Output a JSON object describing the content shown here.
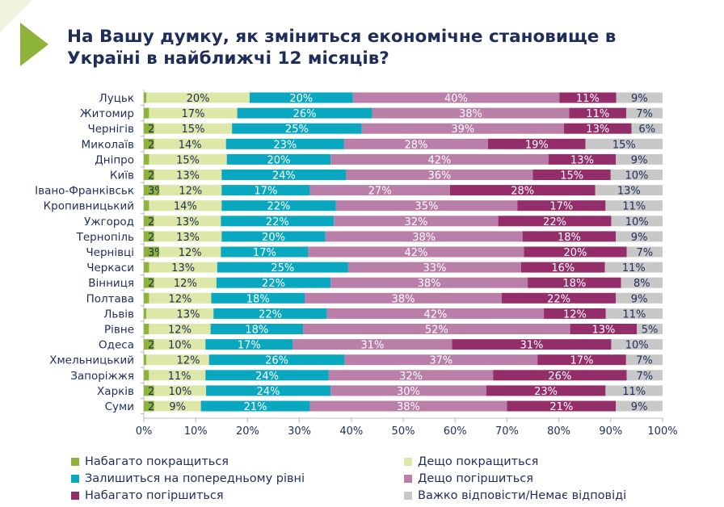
{
  "title": "На Вашу думку, як зміниться економічне становище в Україні в найближчі 12 місяців?",
  "chart_data": {
    "type": "bar",
    "stacked": true,
    "orientation": "horizontal",
    "title": "На Вашу думку, як зміниться економічне становище в Україні в найближчі 12 місяців?",
    "xlim": [
      0,
      100
    ],
    "x_ticks": [
      "0%",
      "10%",
      "20%",
      "30%",
      "40%",
      "50%",
      "60%",
      "70%",
      "80%",
      "90%",
      "100%"
    ],
    "legend_position": "bottom",
    "categories": [
      "Луцьк",
      "Житомир",
      "Чернігів",
      "Миколаїв",
      "Дніпро",
      "Київ",
      "Івано-Франківськ",
      "Кропивницький",
      "Ужгород",
      "Тернопіль",
      "Чернівці",
      "Черкаси",
      "Вінниця",
      "Полтава",
      "Львів",
      "Рівне",
      "Одеса",
      "Хмельницький",
      "Запоріжжя",
      "Харків",
      "Суми"
    ],
    "series": [
      {
        "name": "Набагато покращиться",
        "color": "#8db33a",
        "values": [
          0.5,
          1,
          2,
          2,
          1,
          2,
          3,
          1,
          2,
          2,
          3,
          1,
          2,
          1,
          0.5,
          1,
          2,
          0.5,
          1,
          2,
          2
        ],
        "labels": [
          "<1%",
          "1%",
          "2%",
          "2%",
          "1%",
          "2%",
          "3%",
          "1%",
          "2%",
          "2%",
          "3%",
          "1%",
          "2%",
          "1%",
          "<1%",
          "1%",
          "2%",
          "<1%",
          "1%",
          "2%",
          "2%"
        ]
      },
      {
        "name": "Дещо покращиться",
        "color": "#dde8a8",
        "values": [
          20,
          17,
          15,
          14,
          15,
          13,
          12,
          14,
          13,
          13,
          12,
          13,
          12,
          12,
          13,
          12,
          10,
          12,
          11,
          10,
          9
        ]
      },
      {
        "name": "Залишиться на попередньому рівні",
        "color": "#0aa8c0",
        "values": [
          20,
          26,
          25,
          23,
          20,
          24,
          17,
          22,
          22,
          20,
          17,
          25,
          22,
          18,
          22,
          18,
          17,
          26,
          24,
          24,
          21
        ]
      },
      {
        "name": "Дещо погіршиться",
        "color": "#b97fa8",
        "values": [
          40,
          38,
          39,
          28,
          42,
          36,
          27,
          35,
          32,
          38,
          42,
          33,
          38,
          38,
          42,
          52,
          31,
          37,
          32,
          30,
          38
        ]
      },
      {
        "name": "Набагато погіршиться",
        "color": "#942e6a",
        "values": [
          11,
          11,
          13,
          19,
          13,
          15,
          28,
          17,
          22,
          18,
          20,
          16,
          18,
          22,
          12,
          13,
          31,
          17,
          26,
          23,
          21
        ]
      },
      {
        "name": "Важко відповісти/Немає відповіді",
        "color": "#c8c8c8",
        "values": [
          9,
          7,
          6,
          15,
          9,
          10,
          13,
          11,
          10,
          9,
          7,
          11,
          8,
          9,
          11,
          5,
          10,
          7,
          7,
          11,
          9
        ]
      }
    ]
  }
}
